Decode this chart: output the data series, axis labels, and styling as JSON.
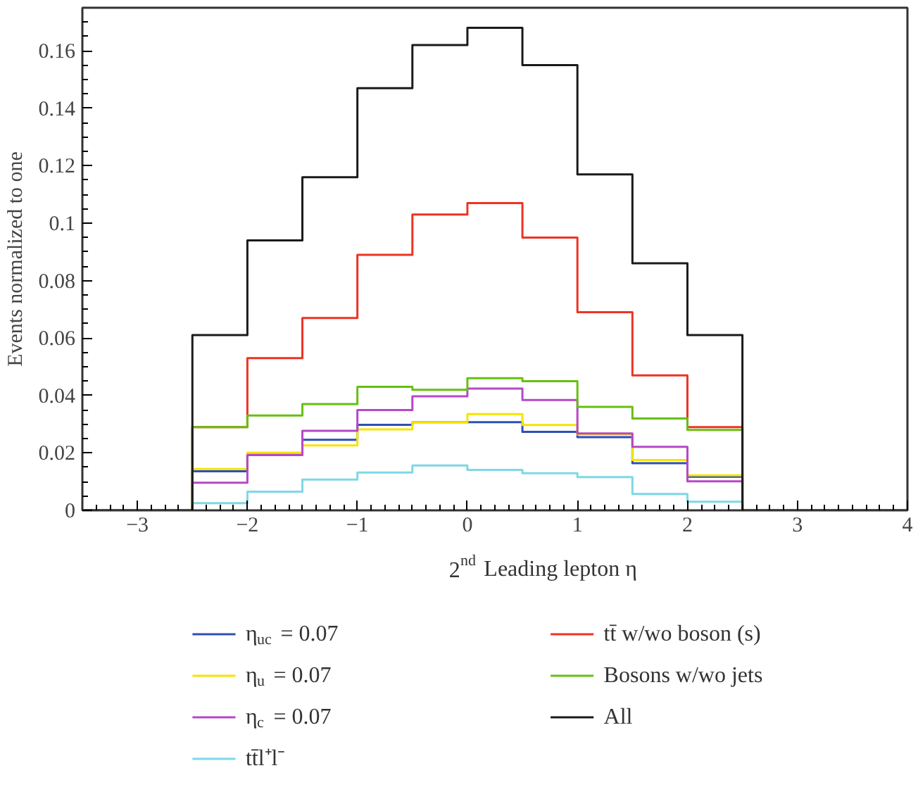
{
  "chart_data": {
    "type": "histogram",
    "xlabel": "2$^{nd}$ Leading lepton η",
    "ylabel": "Events normalized to one",
    "bins": [
      -3.5,
      -3,
      -2.5,
      -2,
      -1.5,
      -1,
      -0.5,
      0,
      0.5,
      1,
      1.5,
      2,
      2.5,
      3,
      3.5,
      4
    ],
    "series": [
      {
        "name": "η$_{uc}$ = 0.07",
        "color": "#2f4fb5",
        "values": [
          0,
          0,
          0.0136,
          0.0193,
          0.0246,
          0.0298,
          0.0307,
          0.0307,
          0.0273,
          0.0255,
          0.0164,
          0.0117,
          0,
          0,
          0
        ]
      },
      {
        "name": "η$_{u}$ = 0.07",
        "color": "#f5e400",
        "values": [
          0,
          0,
          0.0144,
          0.0201,
          0.0226,
          0.0282,
          0.0307,
          0.0335,
          0.0297,
          0.0265,
          0.0175,
          0.0122,
          0,
          0,
          0
        ]
      },
      {
        "name": "η$_{c}$ = 0.07",
        "color": "#b648c8",
        "values": [
          0,
          0,
          0.0096,
          0.0193,
          0.0277,
          0.0349,
          0.0397,
          0.0424,
          0.0384,
          0.0268,
          0.0221,
          0.0101,
          0,
          0,
          0
        ]
      },
      {
        "name": "tt̄l⁺l⁻",
        "color": "#7dd8e6",
        "values": [
          0,
          0,
          0.0025,
          0.0065,
          0.0107,
          0.0132,
          0.0156,
          0.0141,
          0.0129,
          0.0116,
          0.0057,
          0.003,
          0,
          0,
          0
        ]
      },
      {
        "name": "tt̄ w/wo boson (s)",
        "color": "#ee3322",
        "values": [
          0,
          0,
          0.029,
          0.053,
          0.067,
          0.089,
          0.103,
          0.107,
          0.095,
          0.069,
          0.047,
          0.029,
          0,
          0,
          0
        ]
      },
      {
        "name": "Bosons w/wo jets",
        "color": "#66c010",
        "values": [
          0,
          0,
          0.029,
          0.033,
          0.037,
          0.043,
          0.042,
          0.046,
          0.045,
          0.036,
          0.032,
          0.028,
          0,
          0,
          0
        ]
      },
      {
        "name": "All",
        "color": "#1a1a1a",
        "values": [
          0,
          0,
          0.061,
          0.094,
          0.116,
          0.147,
          0.162,
          0.168,
          0.155,
          0.117,
          0.086,
          0.061,
          0,
          0,
          0
        ]
      }
    ],
    "xlim": [
      -3.5,
      4
    ],
    "ylim": [
      0,
      0.175
    ],
    "xticks": [
      -3,
      -2,
      -1,
      0,
      1,
      2,
      3,
      4
    ],
    "yticks": [
      0,
      0.02,
      0.04,
      0.06,
      0.08,
      0.1,
      0.12,
      0.14,
      0.16
    ],
    "grid": false,
    "legend": "bottom"
  }
}
